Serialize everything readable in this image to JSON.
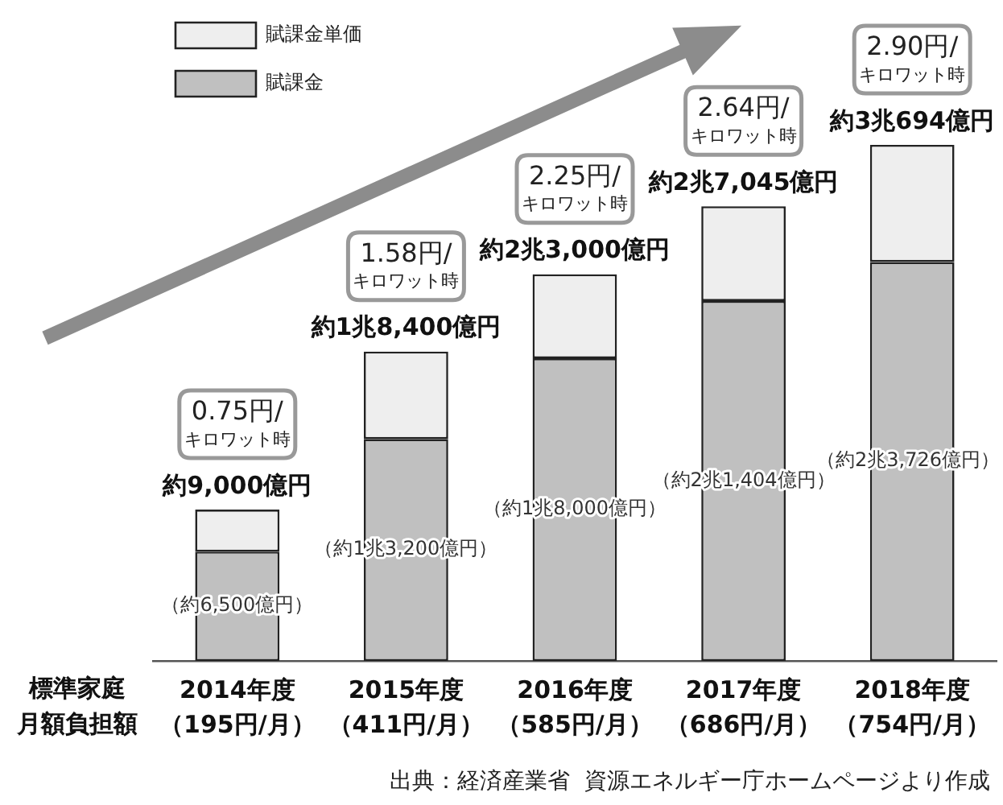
{
  "chart_data": {
    "type": "bar",
    "stacked": true,
    "categories": [
      "2014年度（195円/月）",
      "2015年度（411円/月）",
      "2016年度（585円/月）",
      "2017年度（686円/月）",
      "2018年度（754円/月）"
    ],
    "xlabel": "標準家庭月額負担額",
    "series": [
      {
        "name": "賦課金",
        "color": "#c0c0c0",
        "values": [
          6500,
          13200,
          18000,
          21404,
          23726
        ],
        "value_labels": [
          "（約6,500億円）",
          "（約1兆3,200億円）",
          "（約1兆8,000億円）",
          "（約2兆1,404億円）",
          "（約2兆3,726億円）"
        ]
      },
      {
        "name": "賦課金単価",
        "color": "#eeeeee",
        "values": [
          2500,
          5200,
          5000,
          5641,
          6968
        ]
      }
    ],
    "totals": [
      "約9,000億円",
      "約1兆8,400億円",
      "約2兆3,000億円",
      "約2兆7,045億円",
      "約3兆694億円"
    ],
    "annotations": [
      "0.75円/キロワット時",
      "1.58円/キロワット時",
      "2.25円/キロワット時",
      "2.64円/キロワット時",
      "2.90円/キロワット時",
      "出典：経済産業省  資源エネルギー庁ホームページより作成"
    ],
    "legend": "top left"
  }
}
